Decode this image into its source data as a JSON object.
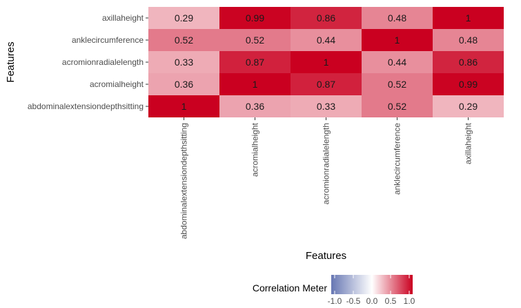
{
  "chart_data": {
    "type": "heatmap",
    "xlabel": "Features",
    "ylabel": "Features",
    "x_categories": [
      "abdominalextensiondepthsitting",
      "acromialheight",
      "acromionradialelength",
      "anklecircumference",
      "axillaheight"
    ],
    "y_categories": [
      "abdominalextensiondepthsitting",
      "acromialheight",
      "acromionradialelength",
      "anklecircumference",
      "axillaheight"
    ],
    "values": [
      [
        1,
        0.36,
        0.33,
        0.52,
        0.29
      ],
      [
        0.36,
        1,
        0.87,
        0.52,
        0.99
      ],
      [
        0.33,
        0.87,
        1,
        0.44,
        0.86
      ],
      [
        0.52,
        0.52,
        0.44,
        1,
        0.48
      ],
      [
        0.29,
        0.99,
        0.86,
        0.48,
        1
      ]
    ],
    "value_labels": [
      [
        "1",
        "0.36",
        "0.33",
        "0.52",
        "0.29"
      ],
      [
        "0.36",
        "1",
        "0.87",
        "0.52",
        "0.99"
      ],
      [
        "0.33",
        "0.87",
        "1",
        "0.44",
        "0.86"
      ],
      [
        "0.52",
        "0.52",
        "0.44",
        "1",
        "0.48"
      ],
      [
        "0.29",
        "0.99",
        "0.86",
        "0.48",
        "1"
      ]
    ],
    "color_scale": {
      "low": "#6777b3",
      "mid": "#ffffff",
      "high": "#ca0020",
      "limits": [
        -1,
        1
      ]
    },
    "legend": {
      "title": "Correlation Meter",
      "position": "bottom",
      "ticks": [
        -1.0,
        -0.5,
        0.0,
        0.5,
        1.0
      ],
      "tick_labels": [
        "-1.0",
        "-0.5",
        "0.0",
        "0.5",
        "1.0"
      ]
    },
    "grid": false
  }
}
